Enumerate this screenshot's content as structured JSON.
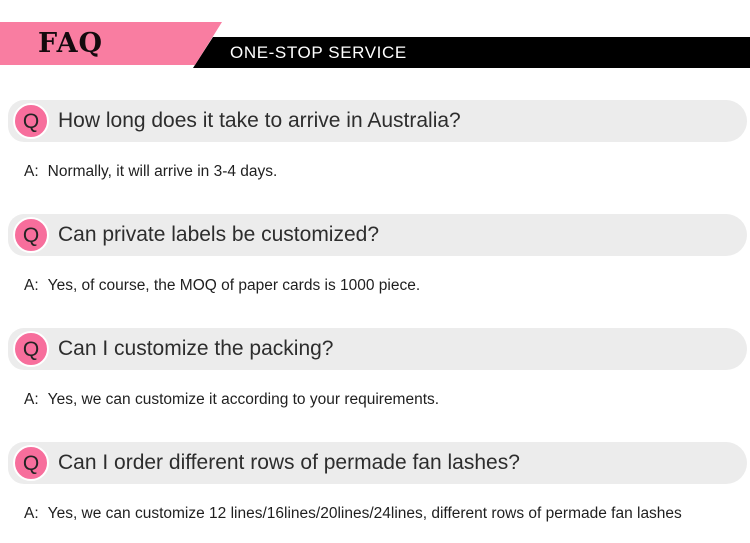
{
  "header": {
    "faq_label": "FAQ",
    "banner_text": "ONE-STOP SERVICE",
    "colors": {
      "ribbon_pink": "#f97da1",
      "banner_black": "#000000",
      "banner_text_color": "#ffffff"
    }
  },
  "faq": {
    "q_badge": "Q",
    "answer_prefix": "A:",
    "colors": {
      "circle_pink": "#f76e9c",
      "bar_gray": "#ececec"
    },
    "items": [
      {
        "question": "How long does it take to arrive in Australia?",
        "answer": "Normally, it will arrive in 3-4 days."
      },
      {
        "question": "Can private labels be customized?",
        "answer": "Yes, of course, the MOQ of paper cards is 1000 piece."
      },
      {
        "question": "Can I customize the packing?",
        "answer": "Yes, we can customize it according to your requirements."
      },
      {
        "question": "Can I order different rows of permade fan lashes?",
        "answer": "Yes, we can customize 12 lines/16lines/20lines/24lines, different rows of permade fan lashes"
      }
    ]
  }
}
